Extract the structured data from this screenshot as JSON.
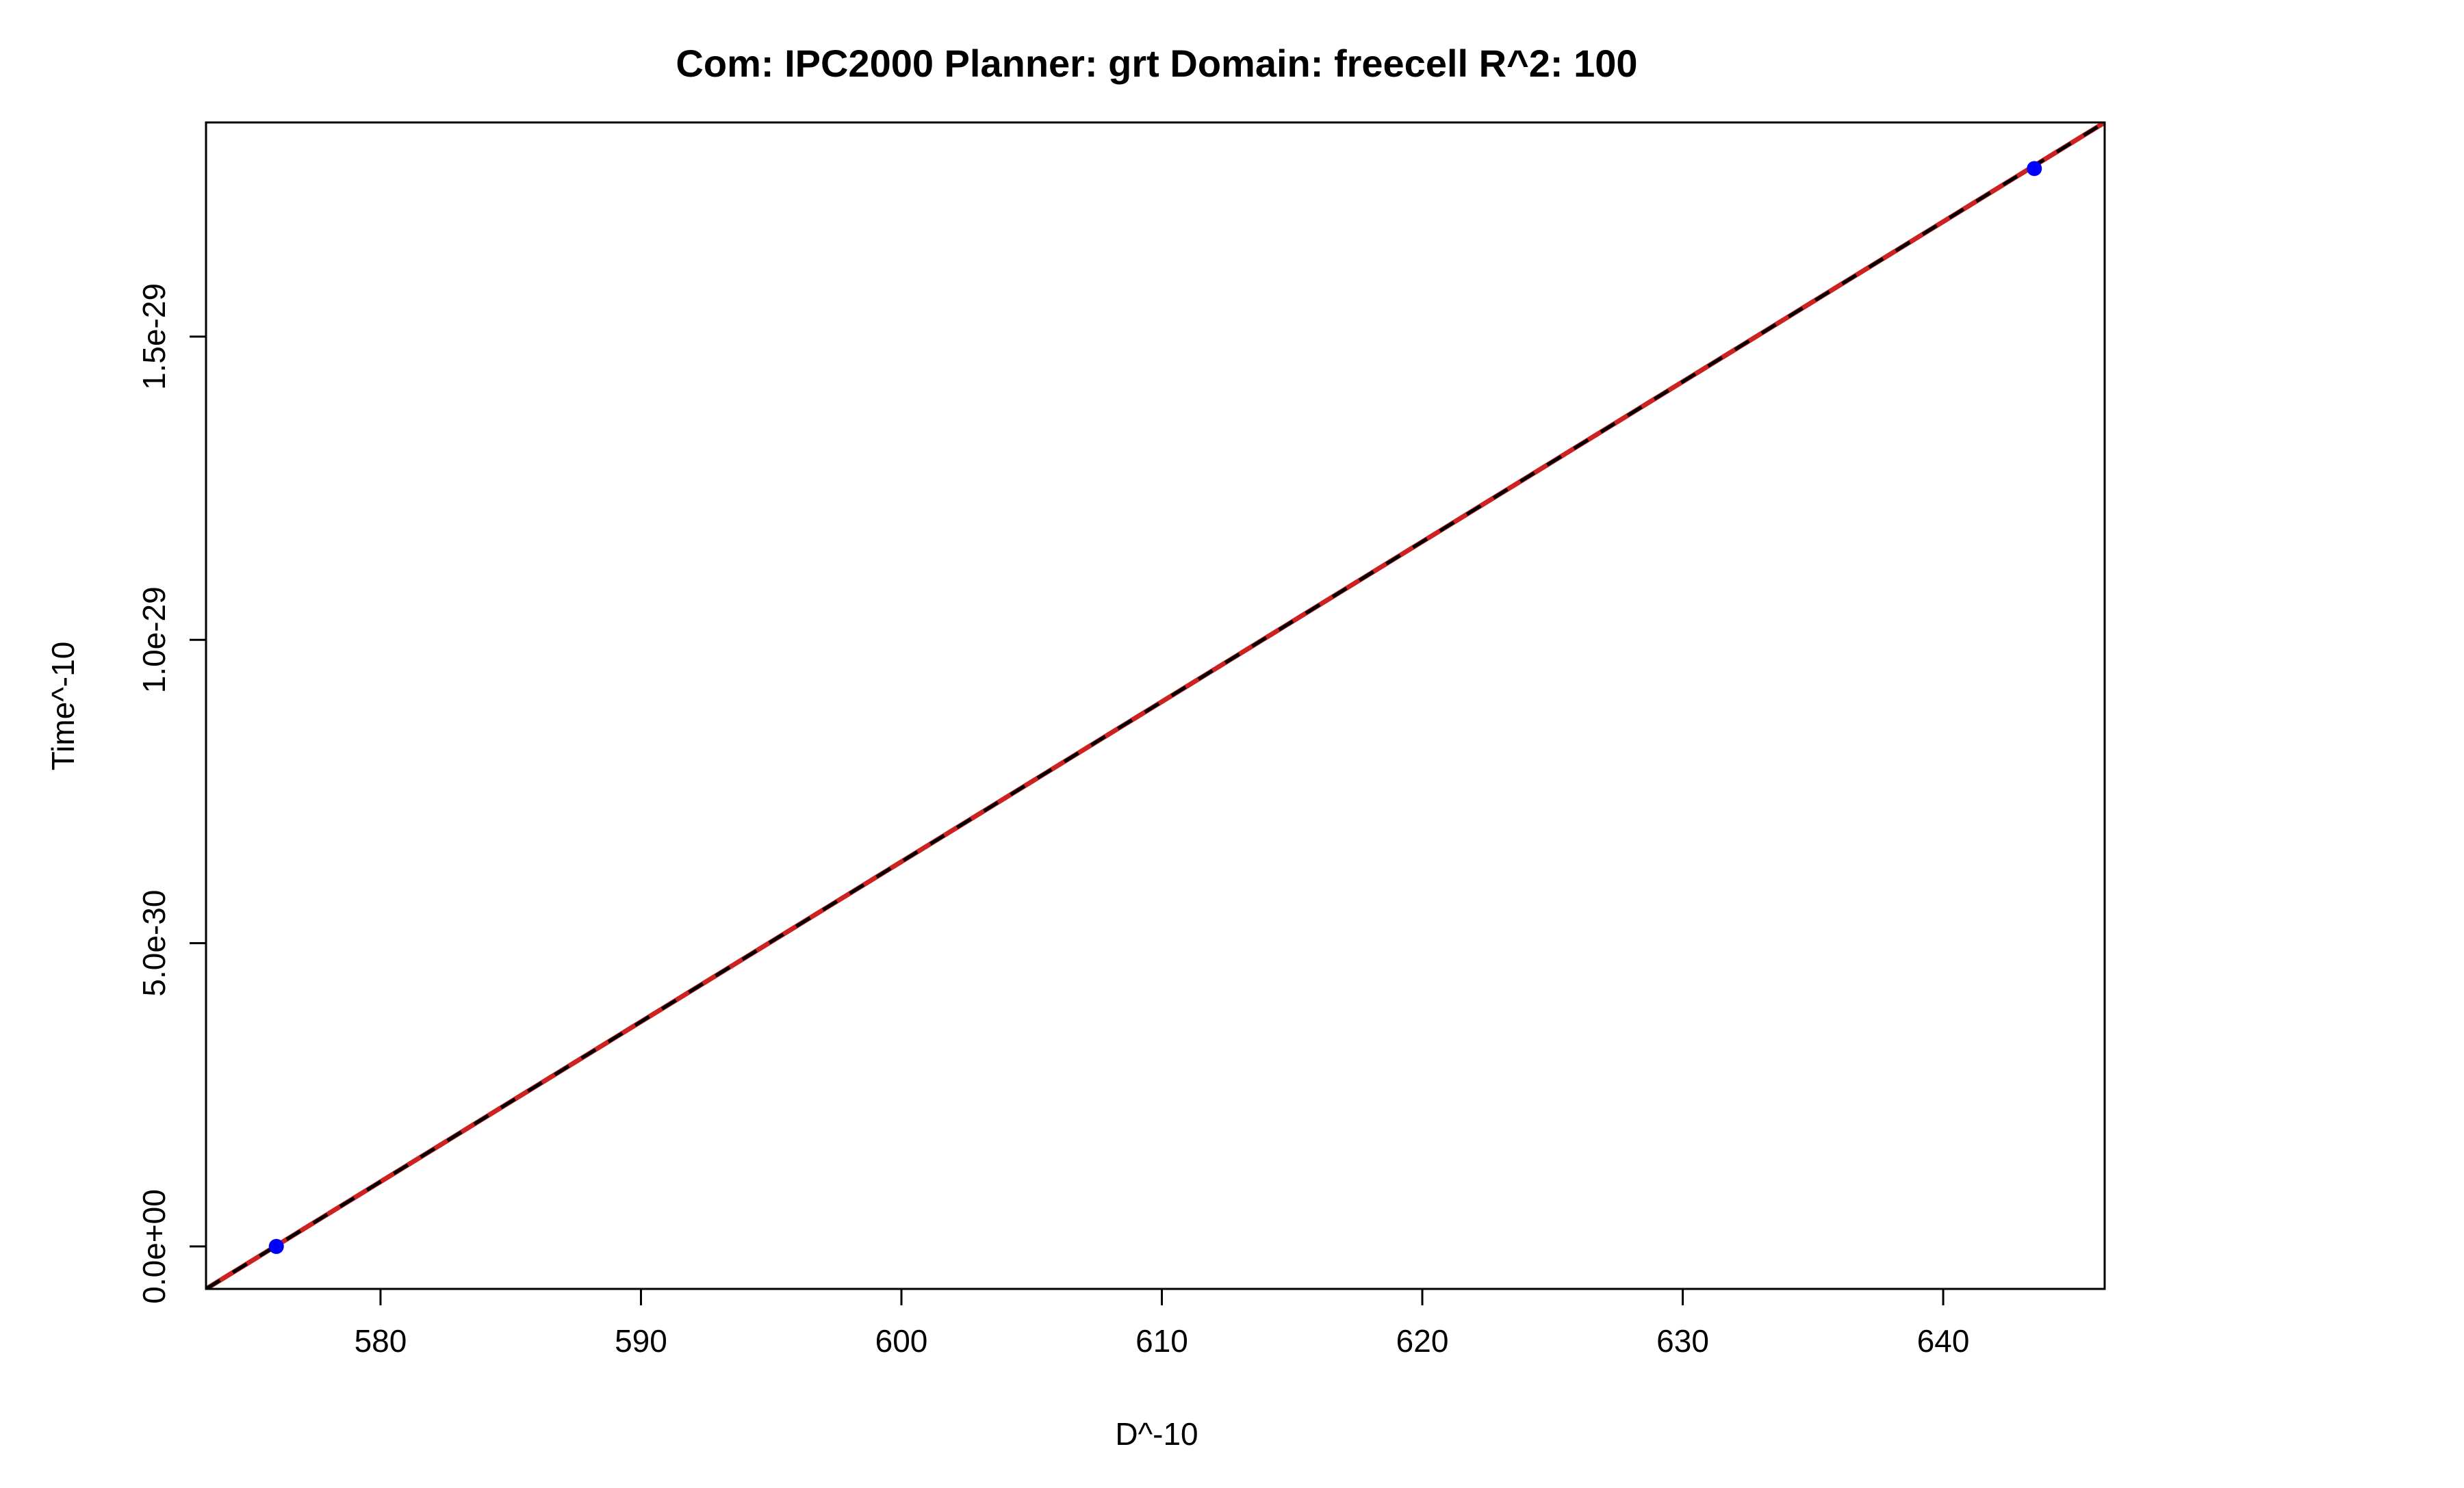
{
  "chart_data": {
    "type": "scatter",
    "title": "Com: IPC2000 Planner: grt Domain: freecell R^2: 100",
    "xlabel": "D^-10",
    "ylabel": "Time^-10",
    "xlim": [
      573.3,
      646.2
    ],
    "ylim": [
      -7e-31,
      1.853e-29
    ],
    "x_ticks": [
      {
        "value": 580,
        "label": "580"
      },
      {
        "value": 590,
        "label": "590"
      },
      {
        "value": 600,
        "label": "600"
      },
      {
        "value": 610,
        "label": "610"
      },
      {
        "value": 620,
        "label": "620"
      },
      {
        "value": 630,
        "label": "630"
      },
      {
        "value": 640,
        "label": "640"
      }
    ],
    "y_ticks": [
      {
        "value": 0,
        "label": "0.0e+00"
      },
      {
        "value": 5e-30,
        "label": "5.0e-30"
      },
      {
        "value": 1e-29,
        "label": "1.0e-29"
      },
      {
        "value": 1.5e-29,
        "label": "1.5e-29"
      }
    ],
    "points": [
      {
        "x": 576.0,
        "y": 0.0
      },
      {
        "x": 643.5,
        "y": 1.777e-29
      }
    ],
    "point_color": "#0000ff",
    "lines": [
      {
        "style": "solid",
        "color": "#cc2222",
        "points": [
          [
            573.3,
            -7e-31
          ],
          [
            646.2,
            1.853e-29
          ]
        ]
      },
      {
        "style": "dashed",
        "color": "#000000",
        "points": [
          [
            573.3,
            -7e-31
          ],
          [
            646.2,
            1.853e-29
          ]
        ]
      }
    ],
    "grid": false,
    "legend": "none"
  }
}
